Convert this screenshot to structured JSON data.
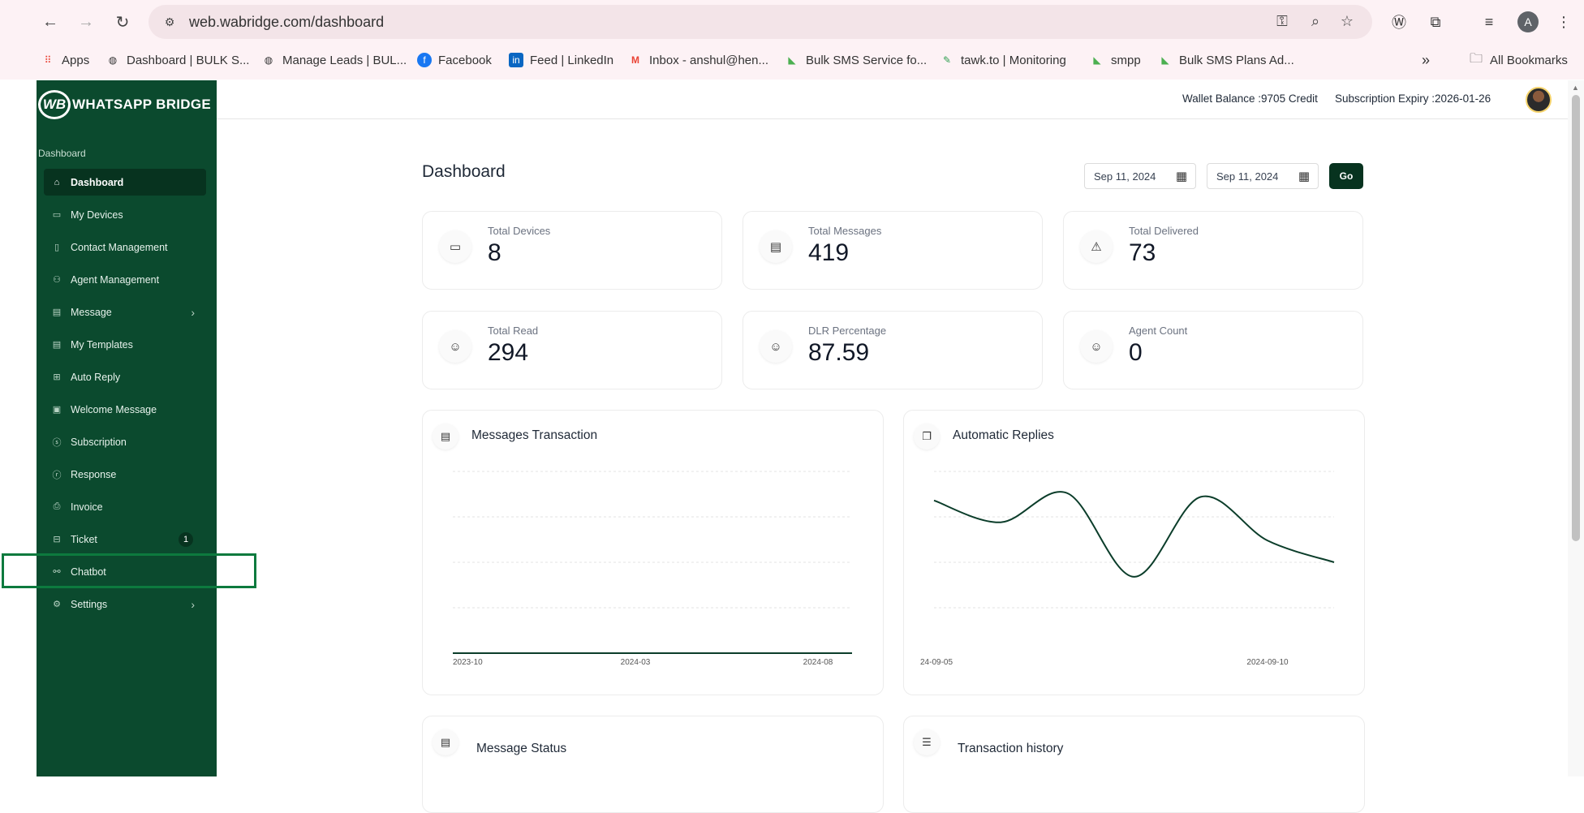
{
  "browser": {
    "url": "web.wabridge.com/dashboard",
    "profile_initial": "A",
    "bookmarks": [
      {
        "label": "Apps",
        "icon": "apps-grid-icon"
      },
      {
        "label": "Dashboard | BULK S...",
        "icon": "globe-icon"
      },
      {
        "label": "Manage Leads | BUL...",
        "icon": "globe-icon"
      },
      {
        "label": "Facebook",
        "icon": "facebook-icon"
      },
      {
        "label": "Feed | LinkedIn",
        "icon": "linkedin-icon"
      },
      {
        "label": "Inbox - anshul@hen...",
        "icon": "gmail-icon"
      },
      {
        "label": "Bulk SMS Service fo...",
        "icon": "bulk-sms-icon"
      },
      {
        "label": "tawk.to | Monitoring",
        "icon": "tawkto-icon"
      },
      {
        "label": "smpp",
        "icon": "bulk-sms-icon"
      },
      {
        "label": "Bulk SMS Plans Ad...",
        "icon": "bulk-sms-icon"
      }
    ],
    "all_bookmarks": "All Bookmarks"
  },
  "brand": {
    "mark": "WB",
    "name": "WHATSAPP BRIDGE"
  },
  "sidebar": {
    "section": "Dashboard",
    "items": [
      {
        "label": "Dashboard",
        "icon": "home-icon",
        "active": true
      },
      {
        "label": "My Devices",
        "icon": "devices-icon"
      },
      {
        "label": "Contact Management",
        "icon": "contact-book-icon"
      },
      {
        "label": "Agent Management",
        "icon": "agents-icon"
      },
      {
        "label": "Message",
        "icon": "message-icon",
        "has_submenu": true
      },
      {
        "label": "My Templates",
        "icon": "template-icon"
      },
      {
        "label": "Auto Reply",
        "icon": "auto-reply-icon"
      },
      {
        "label": "Welcome Message",
        "icon": "welcome-message-icon"
      },
      {
        "label": "Subscription",
        "icon": "dollar-icon"
      },
      {
        "label": "Response",
        "icon": "response-icon"
      },
      {
        "label": "Invoice",
        "icon": "invoice-icon"
      },
      {
        "label": "Ticket",
        "icon": "ticket-icon",
        "badge": "1"
      },
      {
        "label": "Chatbot",
        "icon": "chatbot-flow-icon"
      },
      {
        "label": "Settings",
        "icon": "gear-icon",
        "has_submenu": true
      }
    ]
  },
  "header": {
    "wallet_balance": "Wallet Balance :9705 Credit",
    "subscription_expiry": "Subscription Expiry :2026-01-26"
  },
  "main": {
    "title": "Dashboard",
    "date_from": "Sep 11, 2024",
    "date_to": "Sep 11, 2024",
    "go_label": "Go",
    "cards": [
      {
        "label": "Total Devices",
        "value": "8",
        "icon": "devices-icon"
      },
      {
        "label": "Total Messages",
        "value": "419",
        "icon": "message-icon"
      },
      {
        "label": "Total Delivered",
        "value": "73",
        "icon": "warning-icon"
      },
      {
        "label": "Total Read",
        "value": "294",
        "icon": "user-circle-icon"
      },
      {
        "label": "DLR Percentage",
        "value": "87.59",
        "icon": "user-circle-icon"
      },
      {
        "label": "Agent Count",
        "value": "0",
        "icon": "user-circle-icon"
      }
    ],
    "panels": [
      {
        "title": "Messages Transaction",
        "icon": "message-icon"
      },
      {
        "title": "Automatic Replies",
        "icon": "chat-bubbles-icon"
      },
      {
        "title": "Message Status",
        "icon": "message-icon"
      },
      {
        "title": "Transaction history",
        "icon": "list-icon"
      }
    ]
  },
  "chart_data": [
    {
      "type": "line",
      "title": "Messages Transaction",
      "x": [
        "2023-10",
        "2024-03",
        "2024-08"
      ],
      "xtick_labels": [
        "2023-10",
        "2024-03",
        "2024-08"
      ],
      "series": [
        {
          "values": [
            0,
            0,
            0
          ]
        }
      ],
      "grid": true,
      "color": "#0b3d2a"
    },
    {
      "type": "line",
      "title": "Automatic Replies",
      "xtick_labels": [
        "24-09-05",
        "2024-09-10"
      ],
      "series": [
        {
          "values": [
            4.2,
            3.6,
            4.4,
            2.1,
            4.3,
            3.1,
            2.5
          ]
        }
      ],
      "ylim": [
        0,
        5
      ],
      "grid": true,
      "color": "#0b3d2a"
    }
  ]
}
